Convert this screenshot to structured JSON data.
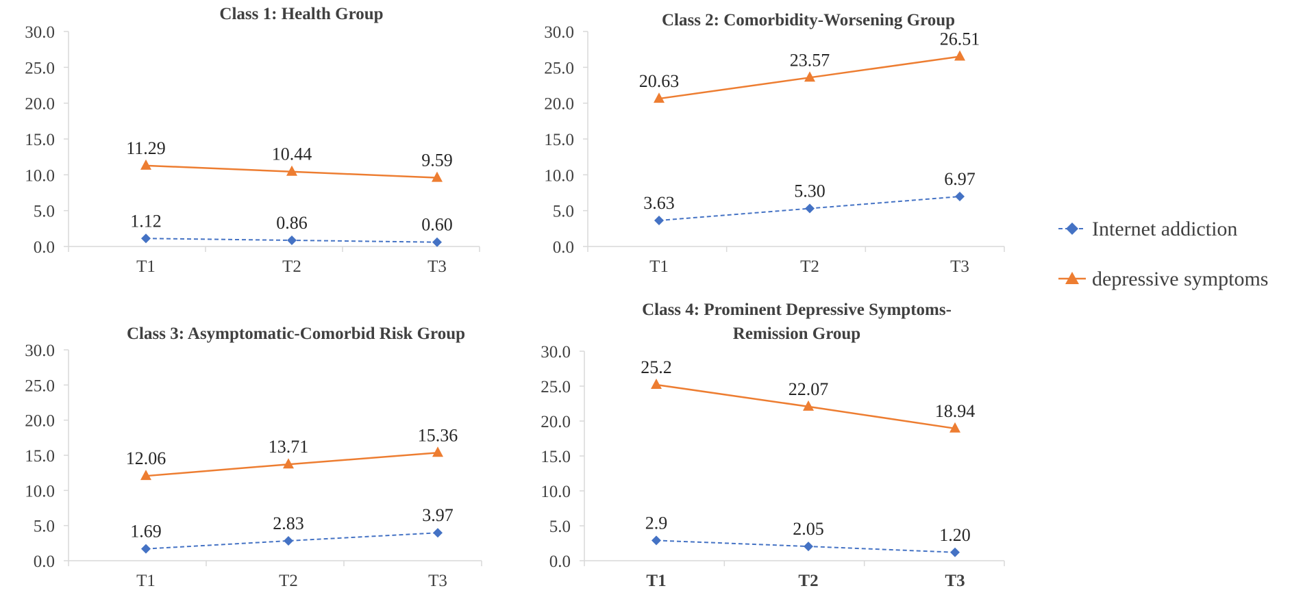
{
  "colors": {
    "internet": "#4472C4",
    "depressive": "#ED7D31",
    "axis": "#D9D9D9",
    "text": "#404040"
  },
  "legend": {
    "items": [
      {
        "key": "internet",
        "label": "Internet addiction",
        "marker": "diamond-icon",
        "dashed": true
      },
      {
        "key": "depressive",
        "label": "depressive symptoms",
        "marker": "triangle-icon",
        "dashed": false
      }
    ]
  },
  "chart_data": [
    {
      "type": "line",
      "title_lines": [
        "Class 1: Health Group"
      ],
      "title_bold_ticks": false,
      "categories": [
        "T1",
        "T2",
        "T3"
      ],
      "yticks": [
        "0.0",
        "5.0",
        "10.0",
        "15.0",
        "20.0",
        "25.0",
        "30.0"
      ],
      "ylim": [
        0,
        30
      ],
      "series": [
        {
          "key": "internet",
          "name": "Internet addiction",
          "values": [
            1.12,
            0.86,
            0.6
          ],
          "labels": [
            "1.12",
            "0.86",
            "0.60"
          ]
        },
        {
          "key": "depressive",
          "name": "depressive symptoms",
          "values": [
            11.29,
            10.44,
            9.59
          ],
          "labels": [
            "11.29",
            "10.44",
            "9.59"
          ]
        }
      ]
    },
    {
      "type": "line",
      "title_lines": [
        "Class 2: Comorbidity-Worsening Group"
      ],
      "title_bold_ticks": false,
      "categories": [
        "T1",
        "T2",
        "T3"
      ],
      "yticks": [
        "0.0",
        "5.0",
        "10.0",
        "15.0",
        "20.0",
        "25.0",
        "30.0"
      ],
      "ylim": [
        0,
        30
      ],
      "series": [
        {
          "key": "internet",
          "name": "Internet addiction",
          "values": [
            3.63,
            5.3,
            6.97
          ],
          "labels": [
            "3.63",
            "5.30",
            "6.97"
          ]
        },
        {
          "key": "depressive",
          "name": "depressive symptoms",
          "values": [
            20.63,
            23.57,
            26.51
          ],
          "labels": [
            "20.63",
            "23.57",
            "26.51"
          ]
        }
      ]
    },
    {
      "type": "line",
      "title_lines": [
        "Class 3: Asymptomatic-Comorbid Risk Group"
      ],
      "title_bold_ticks": false,
      "categories": [
        "T1",
        "T2",
        "T3"
      ],
      "yticks": [
        "0.0",
        "5.0",
        "10.0",
        "15.0",
        "20.0",
        "25.0",
        "30.0"
      ],
      "ylim": [
        0,
        30
      ],
      "series": [
        {
          "key": "internet",
          "name": "Internet addiction",
          "values": [
            1.69,
            2.83,
            3.97
          ],
          "labels": [
            "1.69",
            "2.83",
            "3.97"
          ]
        },
        {
          "key": "depressive",
          "name": "depressive symptoms",
          "values": [
            12.06,
            13.71,
            15.36
          ],
          "labels": [
            "12.06",
            "13.71",
            "15.36"
          ]
        }
      ]
    },
    {
      "type": "line",
      "title_lines": [
        "Class 4: Prominent Depressive Symptoms-",
        "Remission Group"
      ],
      "title_bold_ticks": true,
      "categories": [
        "T1",
        "T2",
        "T3"
      ],
      "yticks": [
        "0.0",
        "5.0",
        "10.0",
        "15.0",
        "20.0",
        "25.0",
        "30.0"
      ],
      "ylim": [
        0,
        30
      ],
      "series": [
        {
          "key": "internet",
          "name": "Internet addiction",
          "values": [
            2.9,
            2.05,
            1.2
          ],
          "labels": [
            "2.9",
            "2.05",
            "1.20"
          ]
        },
        {
          "key": "depressive",
          "name": "depressive symptoms",
          "values": [
            25.2,
            22.07,
            18.94
          ],
          "labels": [
            "25.2",
            "22.07",
            "18.94"
          ]
        }
      ]
    }
  ]
}
